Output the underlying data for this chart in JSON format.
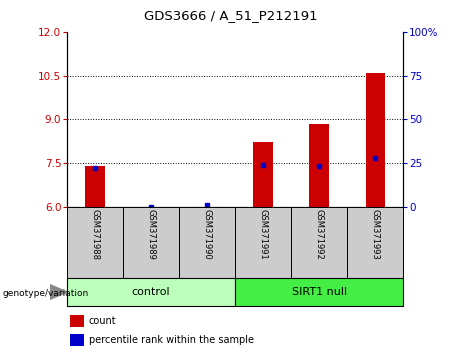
{
  "title": "GDS3666 / A_51_P212191",
  "samples": [
    "GSM371988",
    "GSM371989",
    "GSM371990",
    "GSM371991",
    "GSM371992",
    "GSM371993"
  ],
  "red_values": [
    7.42,
    6.0,
    6.0,
    8.22,
    8.85,
    10.6
  ],
  "blue_values": [
    7.35,
    6.0,
    6.08,
    7.45,
    7.42,
    7.68
  ],
  "ylim_left": [
    6,
    12
  ],
  "ylim_right": [
    0,
    100
  ],
  "yticks_left": [
    6,
    7.5,
    9,
    10.5,
    12
  ],
  "yticks_right": [
    0,
    25,
    50,
    75,
    100
  ],
  "bar_color": "#cc0000",
  "dot_color": "#0000cc",
  "groups": [
    {
      "label": "control",
      "indices": [
        0,
        1,
        2
      ],
      "color": "#bbffbb"
    },
    {
      "label": "SIRT1 null",
      "indices": [
        3,
        4,
        5
      ],
      "color": "#44ee44"
    }
  ],
  "group_label_prefix": "genotype/variation",
  "legend_items": [
    {
      "label": "count",
      "color": "#cc0000"
    },
    {
      "label": "percentile rank within the sample",
      "color": "#0000cc"
    }
  ],
  "tick_color_left": "#cc0000",
  "tick_color_right": "#0000cc",
  "bar_bottom": 6.0,
  "sample_box_color": "#cccccc",
  "fig_bg": "white"
}
